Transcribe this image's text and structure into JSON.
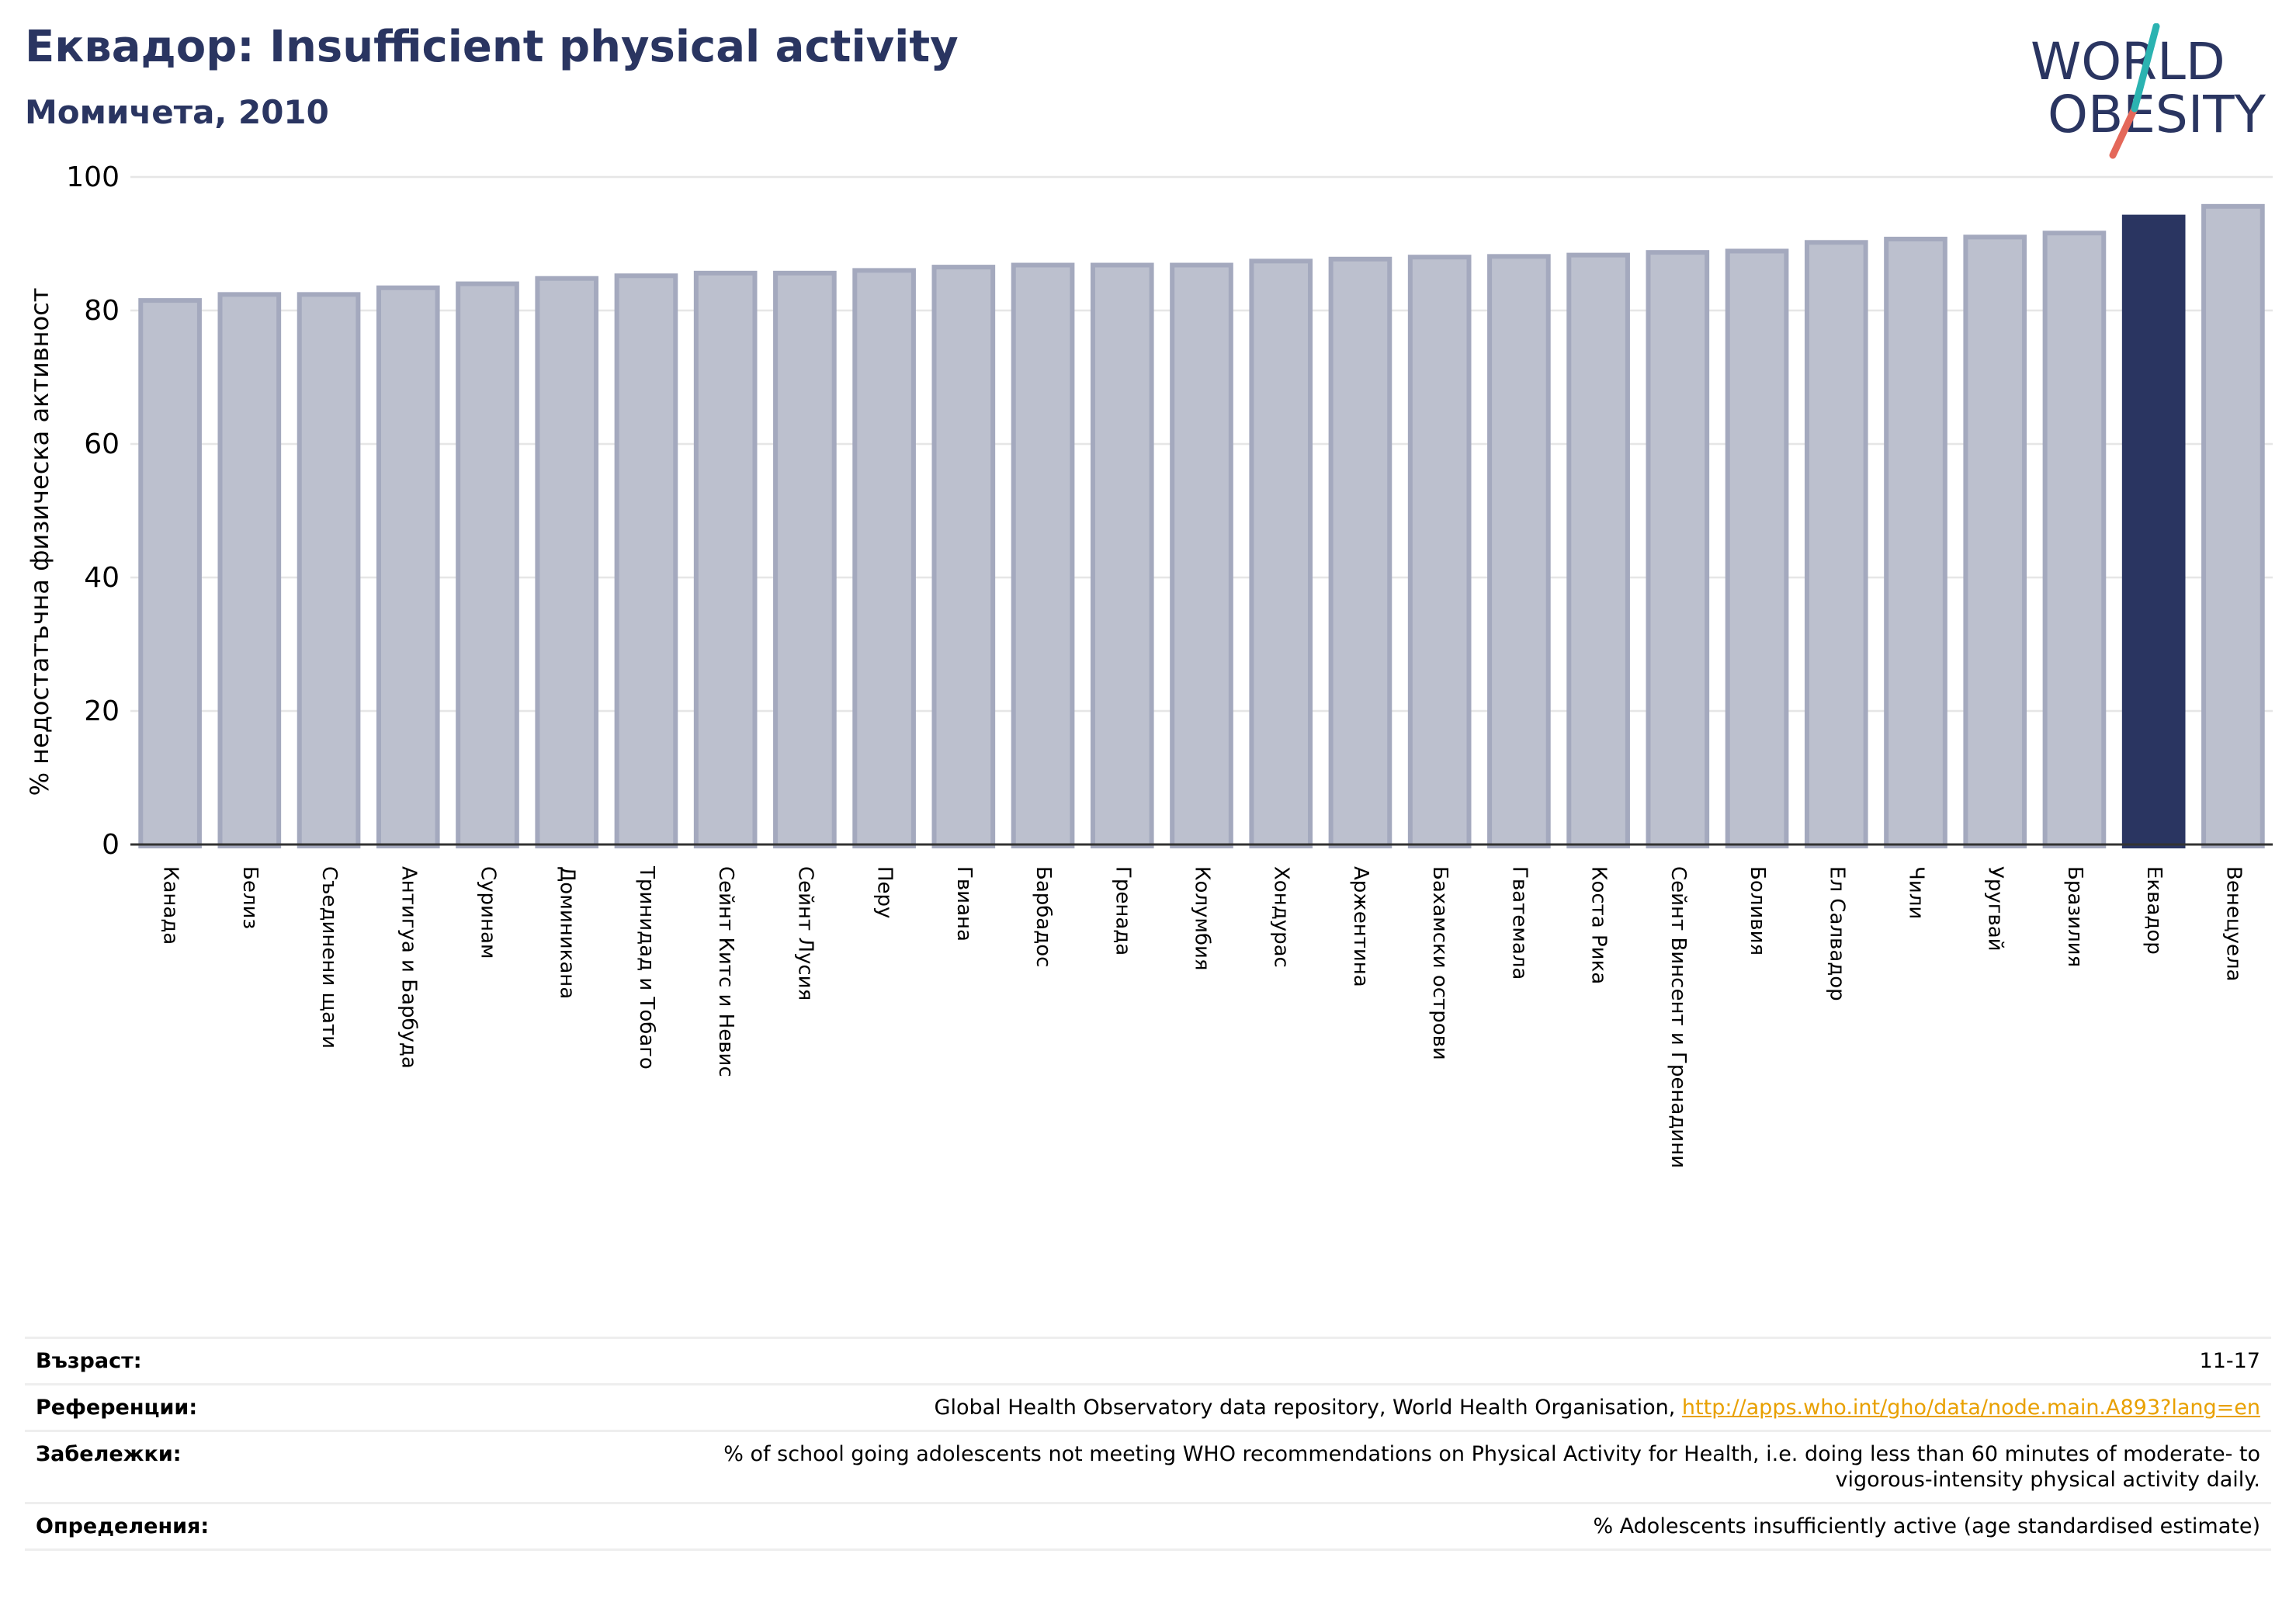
{
  "header": {
    "title": "Еквадор: Insufficient physical activity",
    "subtitle": "Момичета, 2010"
  },
  "logo": {
    "line1": "WORLD",
    "line2": "OBESITY",
    "colors": {
      "text": "#2a3561",
      "slash_teal": "#2bb3b1",
      "slash_orange": "#e4685a"
    }
  },
  "chart_data": {
    "type": "bar",
    "ylabel": "% недостатъчна физическа активност",
    "xlabel": "",
    "ylim": [
      0,
      100
    ],
    "yticks": [
      0,
      20,
      40,
      60,
      80,
      100
    ],
    "grid": true,
    "highlight": "Еквадор",
    "colors": {
      "bar": "#bcc0ce",
      "bar_edge": "#a4a9be",
      "highlight": "#2a3561",
      "grid": "#e6e6e6"
    },
    "categories": [
      "Канада",
      "Белиз",
      "Съединени щати",
      "Антигуа и Барбуда",
      "Суринам",
      "Доминикана",
      "Тринидад и Тобаго",
      "Сейнт Китс и Невис",
      "Сейнт Лусия",
      "Перу",
      "Гвиана",
      "Барбадос",
      "Гренада",
      "Колумбия",
      "Хондурас",
      "Аржентина",
      "Бахамски острови",
      "Гватемала",
      "Коста Рика",
      "Сейнт Винсент и Гренадини",
      "Боливия",
      "Ел Салвадор",
      "Чили",
      "Уругвай",
      "Бразилия",
      "Еквадор",
      "Венецуела"
    ],
    "values": [
      81.5,
      82.4,
      82.4,
      83.4,
      84.0,
      84.8,
      85.2,
      85.6,
      85.6,
      86.0,
      86.5,
      86.8,
      86.8,
      86.8,
      87.4,
      87.7,
      88.0,
      88.1,
      88.3,
      88.7,
      88.9,
      90.2,
      90.7,
      91.0,
      91.6,
      94.0,
      95.6
    ]
  },
  "info": {
    "age_label": "Възраст:",
    "age_value": "11-17",
    "refs_label": "Референции:",
    "refs_text": "Global Health Observatory data repository, World Health Organisation, ",
    "refs_link": "http://apps.who.int/gho/data/node.main.A893?lang=en",
    "notes_label": "Забележки:",
    "notes_value": "% of school going adolescents not meeting WHO recommendations on Physical Activity for Health, i.e. doing less than 60 minutes of moderate- to vigorous-intensity physical activity daily.",
    "defs_label": "Определения:",
    "defs_value": "% Adolescents insufficiently active (age standardised estimate)"
  }
}
